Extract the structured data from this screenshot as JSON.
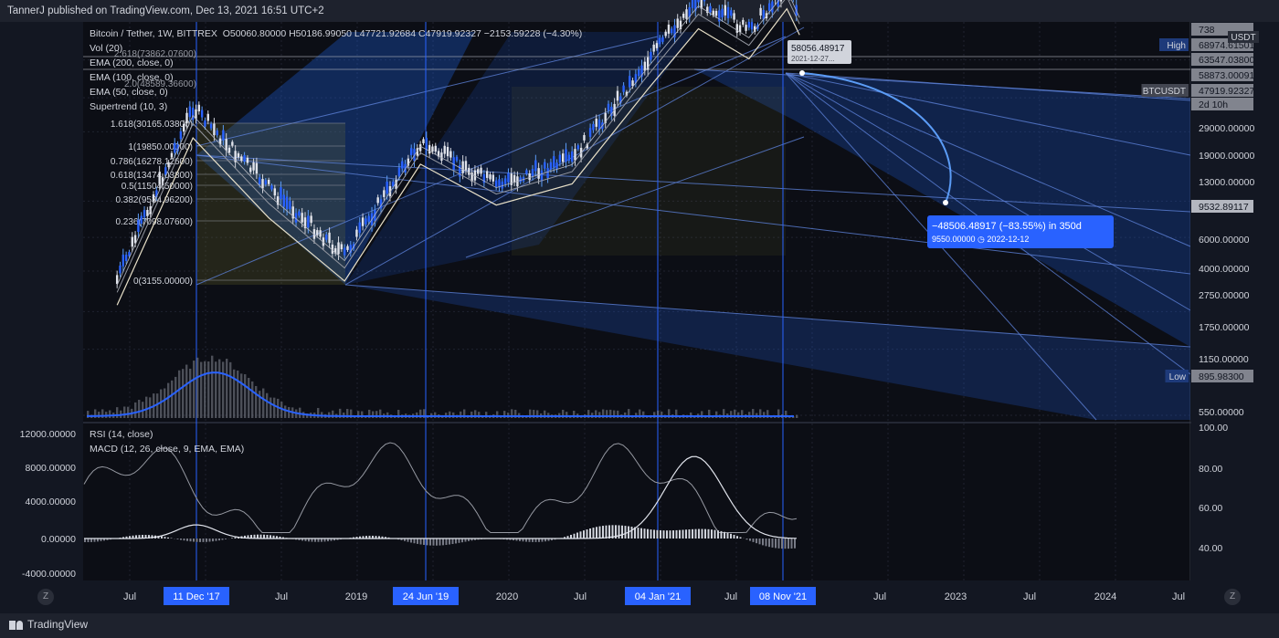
{
  "header": {
    "publisher": "TannerJ published on TradingView.com, Dec 13, 2021 16:51 UTC+2"
  },
  "footer": {
    "brand": "TradingView",
    "z_left": "Z",
    "z_right": "Z"
  },
  "legend": {
    "symbol": "Bitcoin / Tether, 1W, BITTREX",
    "ohlc": "O50060.80000  H50186.99050  L47721.92684  C47919.92327  −2153.59228 (−4.30%)",
    "indicators": [
      "Vol (20)",
      "EMA (200, close, 0)",
      "EMA (100, close, 0)",
      "EMA (50, close, 0)",
      "Supertrend (10, 3)"
    ]
  },
  "lower_legend": [
    "RSI (14, close)",
    "MACD (12, 26, close, 9, EMA, EMA)"
  ],
  "price_axis": {
    "currency": "USDT",
    "ticks": [
      "29000.00000",
      "19000.00000",
      "13000.00000",
      "6000.00000",
      "4000.00000",
      "2750.00000",
      "1750.00000",
      "1150.00000",
      "550.00000"
    ],
    "labels": [
      {
        "text": "738",
        "tag": ""
      },
      {
        "text": "68974.61501",
        "tag": "High"
      },
      {
        "text": "63547.03800",
        "tag": ""
      },
      {
        "text": "58873.00091",
        "tag": ""
      },
      {
        "text": "47919.92327",
        "tag": "BTCUSDT"
      },
      {
        "text": "2d 10h",
        "tag": ""
      },
      {
        "text": "9532.89117",
        "tag": ""
      },
      {
        "text": "895.98300",
        "tag": "Low"
      }
    ]
  },
  "lower_axis": {
    "rsi_ticks": [
      "100.00",
      "80.00",
      "60.00",
      "40.00"
    ],
    "macd_ticks": [
      "12000.00000",
      "8000.00000",
      "4000.00000",
      "0.00000",
      "-4000.00000"
    ]
  },
  "time_axis": {
    "labels": [
      "Jul",
      "Jul",
      "2019",
      "2020",
      "Jul",
      "Jul",
      "2",
      "Jul",
      "2023",
      "Jul",
      "2024",
      "Jul"
    ],
    "highlights": [
      "11 Dec '17",
      "24 Jun '19",
      "04 Jan '21",
      "08 Nov '21"
    ]
  },
  "chart_data": {
    "type": "line",
    "title": "Bitcoin / Tether, 1W, BITTREX",
    "y_scale": "log",
    "fib_levels": [
      {
        "level": "1.618",
        "price": "30165.03800"
      },
      {
        "level": "1",
        "price": "19850.00000"
      },
      {
        "level": "0.786",
        "price": "16278.12600"
      },
      {
        "level": "0.618",
        "price": "13474.03800"
      },
      {
        "level": "0.5",
        "price": "11504.50000"
      },
      {
        "level": "0.382",
        "price": "9534.96200"
      },
      {
        "level": "0.236",
        "price": "7098.07600"
      },
      {
        "level": "0",
        "price": "3155.00000"
      }
    ],
    "top_fib_levels": [
      "2.618(73862.07600)",
      "2.0(48589.36600)"
    ],
    "measure": {
      "start_price": "58056.48917",
      "start_date": "2021-12-27",
      "text": "−48506.48917 (−83.55%) in 350d",
      "target": "9550.00000",
      "target_date": "2022-12-12"
    },
    "x": [
      "2017-06",
      "2017-12",
      "2018-06",
      "2018-12",
      "2019-06",
      "2019-12",
      "2020-06",
      "2020-12",
      "2021-04",
      "2021-08",
      "2021-11",
      "2021-12"
    ],
    "series": [
      {
        "values": [
          2500,
          17000,
          7000,
          3300,
          11500,
          7200,
          9500,
          29000,
          58000,
          40000,
          66000,
          47900
        ]
      }
    ],
    "volume_note": "Vol (20)"
  }
}
